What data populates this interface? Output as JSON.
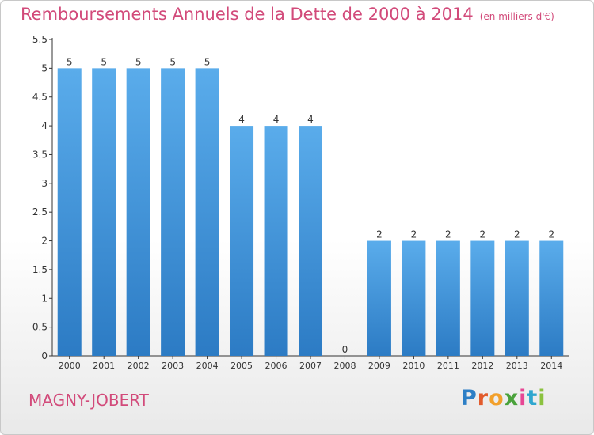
{
  "title": "Remboursements Annuels de la Dette de 2000 à 2014",
  "title_unit": "(en milliers d'€)",
  "place": "MAGNY-JOBERT",
  "brand": {
    "letters": [
      {
        "ch": "P",
        "color": "#2d7fc6"
      },
      {
        "ch": "r",
        "color": "#e25b2c"
      },
      {
        "ch": "o",
        "color": "#f2a02b"
      },
      {
        "ch": "x",
        "color": "#4aa23b"
      },
      {
        "ch": "i",
        "color": "#e74694"
      },
      {
        "ch": "t",
        "color": "#2fa7cf"
      },
      {
        "ch": "i",
        "color": "#8bc23f"
      }
    ]
  },
  "colors": {
    "bar_top": "#5aaceb",
    "bar_bottom": "#2c7bc4",
    "axis": "#333333",
    "text": "#333333",
    "accent": "#d24a7a"
  },
  "chart_data": {
    "type": "bar",
    "categories": [
      "2000",
      "2001",
      "2002",
      "2003",
      "2004",
      "2005",
      "2006",
      "2007",
      "2008",
      "2009",
      "2010",
      "2011",
      "2012",
      "2013",
      "2014"
    ],
    "values": [
      5,
      5,
      5,
      5,
      5,
      4,
      4,
      4,
      0,
      2,
      2,
      2,
      2,
      2,
      2
    ],
    "data_labels": [
      "5",
      "5",
      "5",
      "5",
      "5",
      "4",
      "4",
      "4",
      "0",
      "2",
      "2",
      "2",
      "2",
      "2",
      "2"
    ],
    "title": "Remboursements Annuels de la Dette de 2000 à 2014",
    "xlabel": "",
    "ylabel": "",
    "ylim": [
      0,
      5.5
    ],
    "yticks": [
      0,
      0.5,
      1,
      1.5,
      2,
      2.5,
      3,
      3.5,
      4,
      4.5,
      5,
      5.5
    ],
    "ytick_labels": [
      "0",
      "0.5",
      "1",
      "1.5",
      "2",
      "2.5",
      "3",
      "3.5",
      "4",
      "4.5",
      "5",
      "5.5"
    ],
    "grid": false,
    "legend": "none"
  }
}
